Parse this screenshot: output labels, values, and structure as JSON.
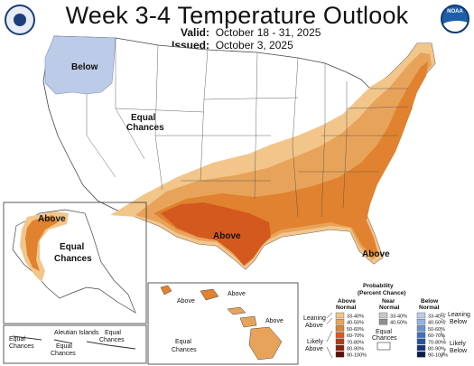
{
  "title": "Week 3-4 Temperature Outlook",
  "valid_label": "Valid:",
  "valid_value": "October 18 - 31, 2025",
  "issued_label": "Issued:",
  "issued_value": "October 3, 2025",
  "logos": {
    "left": "doc-seal-icon",
    "right": "noaa-logo-icon",
    "noaa_text": "NOAA"
  },
  "map_labels": {
    "conus_below": "Below",
    "conus_equal_1": "Equal",
    "conus_equal_2": "Chances",
    "conus_above_sw": "Above",
    "conus_above_se": "Above",
    "alaska_above": "Above",
    "alaska_equal_1": "Equal",
    "alaska_equal_2": "Chances",
    "aleutian_title": "Aleutian Islands",
    "aleutian_equal_1a": "Equal",
    "aleutian_equal_1b": "Chances",
    "aleutian_equal_2a": "Equal",
    "aleutian_equal_2b": "Chances",
    "aleutian_equal_3a": "Equal",
    "aleutian_equal_3b": "Chances",
    "hawaii_above_1": "Above",
    "hawaii_above_2": "Above",
    "hawaii_above_3": "Above",
    "hawaii_equal_1": "Equal",
    "hawaii_equal_2": "Chances"
  },
  "legend": {
    "title_1": "Probability",
    "title_2": "(Percent Chance)",
    "above_header_1": "Above",
    "above_header_2": "Normal",
    "near_header_1": "Near",
    "near_header_2": "Normal",
    "below_header_1": "Below",
    "below_header_2": "Normal",
    "leaning_above_1": "Leaning",
    "leaning_above_2": "Above",
    "likely_above_1": "Likely",
    "likely_above_2": "Above",
    "leaning_below_1": "Leaning",
    "leaning_below_2": "Below",
    "likely_below_1": "Likely",
    "likely_below_2": "Below",
    "equal_chances_1": "Equal",
    "equal_chances_2": "Chances",
    "above_bins": [
      {
        "label": "33-40%",
        "color": "#f2c58a"
      },
      {
        "label": "40-50%",
        "color": "#e8a35a"
      },
      {
        "label": "50-60%",
        "color": "#e0822f"
      },
      {
        "label": "60-70%",
        "color": "#d4591f"
      },
      {
        "label": "70-80%",
        "color": "#b83616"
      },
      {
        "label": "80-90%",
        "color": "#8f1f0e"
      },
      {
        "label": "90-100%",
        "color": "#5e0d04"
      }
    ],
    "near_bins": [
      {
        "label": "33-40%",
        "color": "#c8c8c8"
      },
      {
        "label": "40-50%",
        "color": "#8f8f8f"
      }
    ],
    "below_bins": [
      {
        "label": "33-40%",
        "color": "#bccbe8"
      },
      {
        "label": "40-50%",
        "color": "#98b2de"
      },
      {
        "label": "50-60%",
        "color": "#6a93d0"
      },
      {
        "label": "60-70%",
        "color": "#3d72c0"
      },
      {
        "label": "70-80%",
        "color": "#2052a8"
      },
      {
        "label": "80-90%",
        "color": "#14337c"
      },
      {
        "label": "90-100%",
        "color": "#0a1a4e"
      }
    ]
  }
}
